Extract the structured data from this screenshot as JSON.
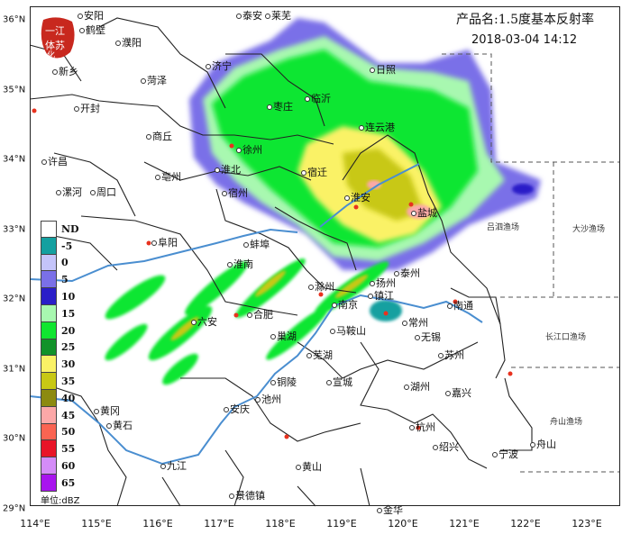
{
  "header": {
    "product_title": "产品名:1.5度基本反射率",
    "timestamp": "2018-03-04 14:12"
  },
  "logo": {
    "text": "江苏一体化",
    "color": "#c8281e"
  },
  "legend": {
    "unit_label": "单位:dBZ",
    "items": [
      {
        "label": "ND",
        "color": "#ffffff"
      },
      {
        "label": "-5",
        "color": "#14a0a0"
      },
      {
        "label": "0",
        "color": "#c4c4fa"
      },
      {
        "label": "5",
        "color": "#7a70e8"
      },
      {
        "label": "10",
        "color": "#2a1ec8"
      },
      {
        "label": "15",
        "color": "#a8f8b0"
      },
      {
        "label": "20",
        "color": "#10e630"
      },
      {
        "label": "25",
        "color": "#12922a"
      },
      {
        "label": "30",
        "color": "#faf266"
      },
      {
        "label": "35",
        "color": "#c8c814"
      },
      {
        "label": "40",
        "color": "#8c8a10"
      },
      {
        "label": "45",
        "color": "#fca8a8"
      },
      {
        "label": "50",
        "color": "#fa6452"
      },
      {
        "label": "55",
        "color": "#e81428"
      },
      {
        "label": "60",
        "color": "#d48cf8"
      },
      {
        "label": "65",
        "color": "#a814ee"
      }
    ]
  },
  "axes": {
    "lon_labels": [
      "114°E",
      "115°E",
      "116°E",
      "117°E",
      "118°E",
      "119°E",
      "120°E",
      "121°E",
      "122°E",
      "123°E"
    ],
    "lat_labels": [
      "36°N",
      "35°N",
      "34°N",
      "33°N",
      "32°N",
      "31°N",
      "30°N",
      "29°N"
    ]
  },
  "cities": [
    "安阳",
    "鹤壁",
    "濮阳",
    "新乡",
    "泰安",
    "莱芜",
    "济宁",
    "菏泽",
    "临沂",
    "开封",
    "商丘",
    "枣庄",
    "徐州",
    "许昌",
    "亳州",
    "宿迁",
    "淮北",
    "漯河",
    "周口",
    "宿州",
    "日照",
    "连云港",
    "淮安",
    "盐城",
    "阜阳",
    "蚌埠",
    "淮南",
    "滁州",
    "泰州",
    "扬州",
    "镇江",
    "南京",
    "常州",
    "南通",
    "合肥",
    "六安",
    "巢湖",
    "马鞍山",
    "无锡",
    "芜湖",
    "苏州",
    "铜陵",
    "宣城",
    "湖州",
    "嘉兴",
    "池州",
    "安庆",
    "黄冈",
    "黄石",
    "杭州",
    "绍兴",
    "舟山",
    "宁波",
    "九江",
    "黄山",
    "景德镇",
    "金华"
  ],
  "sea_areas": [
    "吕泗渔场",
    "大沙渔场",
    "长江口渔场",
    "舟山渔场"
  ],
  "colors": {
    "river": "#4a8ed0",
    "boundary": "#222222",
    "sea_boundary": "#555555"
  }
}
